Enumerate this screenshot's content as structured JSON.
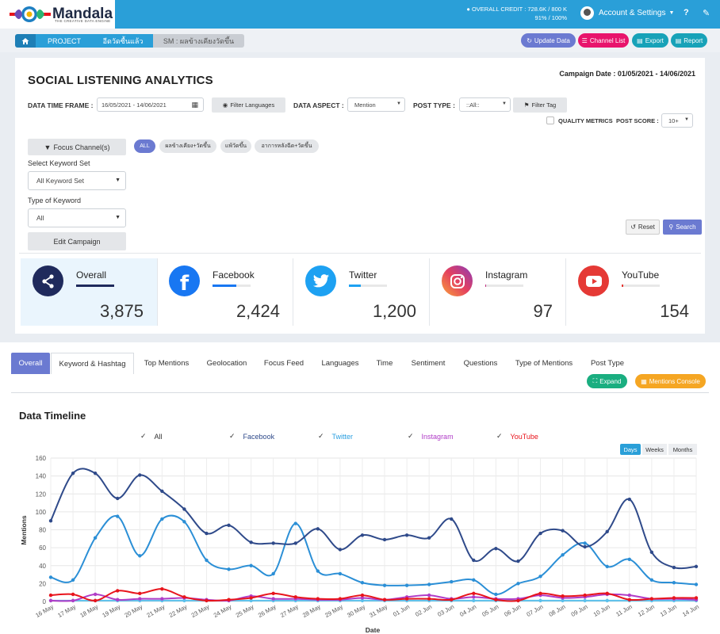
{
  "header": {
    "brand": "Mandala",
    "brand_tagline": "THE CREATIVE DATA ENGINE",
    "credit_line1": "OVERALL CREDIT : 728.6K / 800 K",
    "credit_line2": "91% / 100%",
    "account_label": "Account & Settings",
    "help_icon": "?",
    "colors": {
      "header_bg": "#2a9fd8"
    }
  },
  "breadcrumb": {
    "items": [
      "PROJECT",
      "อีดวัดซื้นแล้ว",
      "SM : ผลข้างเคียงวัดขึ้น"
    ]
  },
  "actions": {
    "update": "Update Data",
    "channel_list": "Channel List",
    "export": "Export",
    "report": "Report"
  },
  "main": {
    "title": "SOCIAL LISTENING ANALYTICS",
    "campaign_date": "Campaign Date : 01/05/2021 - 14/06/2021",
    "filters": {
      "time_frame_label": "DATA TIME FRAME :",
      "time_frame_value": "16/05/2021 - 14/06/2021",
      "filter_languages": "Filter Languages",
      "data_aspect_label": "DATA ASPECT :",
      "data_aspect_value": "Mention",
      "post_type_label": "POST TYPE :",
      "post_type_value": "::All::",
      "filter_tag": "Filter Tag",
      "quality_metrics": "QUALITY METRICS",
      "post_score_label": "POST SCORE :",
      "post_score_value": "10+"
    },
    "focus_channels": "Focus Channel(s)",
    "chips": [
      "ALL",
      "ผลข้างเคียง+วัดขึ้น",
      "แพ้วัดขึ้น",
      "อาการหลังฉีด+วัดขึ้น"
    ],
    "keyword_set_label": "Select Keyword Set",
    "keyword_set_value": "All Keyword Set",
    "keyword_type_label": "Type of Keyword",
    "keyword_type_value": "All",
    "edit_campaign": "Edit Campaign",
    "reset": "Reset",
    "search": "Search"
  },
  "stats": [
    {
      "name": "Overall",
      "value": "3,875",
      "color": "#1f2a5c",
      "share": 1.0
    },
    {
      "name": "Facebook",
      "value": "2,424",
      "color": "#1877f2",
      "share": 0.63
    },
    {
      "name": "Twitter",
      "value": "1,200",
      "color": "#1da1f2",
      "share": 0.31
    },
    {
      "name": "Instagram",
      "value": "97",
      "color": "#c13584",
      "share": 0.025
    },
    {
      "name": "YouTube",
      "value": "154",
      "color": "#e53935",
      "share": 0.04
    }
  ],
  "tabs": [
    "Overall",
    "Keyword & Hashtag",
    "Top Mentions",
    "Geolocation",
    "Focus Feed",
    "Languages",
    "Time",
    "Sentiment",
    "Questions",
    "Type of Mentions",
    "Post Type"
  ],
  "panel_buttons": {
    "expand": "Expand",
    "console": "Mentions Console"
  },
  "timeline": {
    "title": "Data Timeline",
    "toggles": [
      "Days",
      "Weeks",
      "Months"
    ],
    "active_toggle": "Days"
  },
  "chart_data": {
    "type": "line",
    "title": "Data Timeline",
    "xlabel": "Date",
    "ylabel": "Mentions",
    "ylim": [
      0,
      160
    ],
    "yticks": [
      0,
      20,
      40,
      60,
      80,
      100,
      120,
      140,
      160
    ],
    "grid": true,
    "legend_position": "top",
    "x": [
      "16 May",
      "17 May",
      "18 May",
      "19 May",
      "20 May",
      "21 May",
      "22 May",
      "23 May",
      "24 May",
      "25 May",
      "26 May",
      "27 May",
      "28 May",
      "29 May",
      "30 May",
      "31 May",
      "01 Jun",
      "02 Jun",
      "03 Jun",
      "04 Jun",
      "05 Jun",
      "06 Jun",
      "07 Jun",
      "08 Jun",
      "09 Jun",
      "10 Jun",
      "11 Jun",
      "12 Jun",
      "13 Jun",
      "14 Jun"
    ],
    "series": [
      {
        "name": "All",
        "color": "#2f4a8a",
        "values": [
          90,
          143,
          143,
          115,
          141,
          123,
          103,
          76,
          85,
          66,
          65,
          65,
          81,
          58,
          74,
          69,
          74,
          71,
          92,
          46,
          59,
          45,
          76,
          79,
          61,
          78,
          114,
          55,
          38,
          39
        ]
      },
      {
        "name": "Facebook",
        "color": "#2b8fd6",
        "values": [
          27,
          24,
          71,
          95,
          51,
          92,
          89,
          46,
          36,
          40,
          31,
          87,
          34,
          31,
          21,
          18,
          18,
          19,
          22,
          24,
          8,
          20,
          28,
          52,
          65,
          39,
          47,
          24,
          21,
          19
        ]
      },
      {
        "name": "Twitter",
        "color": "#5bc0eb",
        "values": [
          1,
          1,
          1,
          1,
          1,
          1,
          1,
          1,
          1,
          1,
          1,
          1,
          1,
          1,
          1,
          1,
          1,
          1,
          1,
          1,
          1,
          1,
          1,
          1,
          1,
          1,
          1,
          1,
          1,
          1
        ]
      },
      {
        "name": "Instagram",
        "color": "#b03cc7",
        "values": [
          1,
          1,
          8,
          2,
          3,
          3,
          4,
          2,
          1,
          6,
          3,
          3,
          2,
          2,
          4,
          2,
          5,
          7,
          3,
          5,
          3,
          3,
          7,
          4,
          5,
          8,
          7,
          3,
          3,
          2
        ]
      },
      {
        "name": "YouTube",
        "color": "#e8141c",
        "values": [
          7,
          8,
          1,
          12,
          9,
          14,
          5,
          1,
          2,
          4,
          9,
          5,
          3,
          3,
          7,
          2,
          3,
          3,
          2,
          9,
          2,
          1,
          9,
          6,
          7,
          9,
          2,
          3,
          4,
          4
        ]
      }
    ]
  }
}
